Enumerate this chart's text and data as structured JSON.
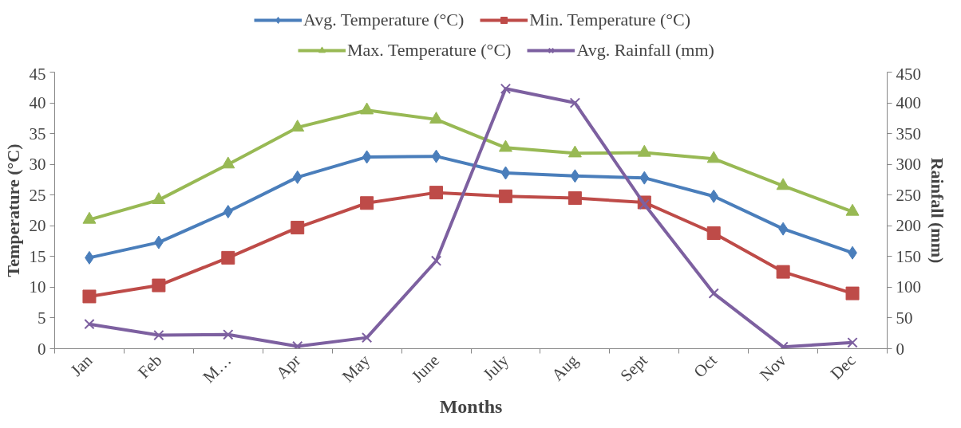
{
  "chart_data": {
    "type": "line",
    "xlabel": "Months",
    "ylabel": "Temperature (°C)",
    "y2label": "Rainfall (mm)",
    "categories": [
      "Jan",
      "Feb",
      "M…",
      "Apr",
      "May",
      "June",
      "July",
      "Aug",
      "Sept",
      "Oct",
      "Nov",
      "Dec"
    ],
    "series": [
      {
        "name": "Avg. Temperature (°C)",
        "color": "#4a7ebb",
        "marker": "diamond",
        "values": [
          14.8,
          17.3,
          22.3,
          27.9,
          31.2,
          31.3,
          28.6,
          28.1,
          27.8,
          24.8,
          19.5,
          15.6
        ]
      },
      {
        "name": "Min. Temperature (°C)",
        "color": "#be4b48",
        "marker": "square",
        "values": [
          8.5,
          10.3,
          14.8,
          19.7,
          23.7,
          25.4,
          24.8,
          24.5,
          23.8,
          18.8,
          12.5,
          9.0
        ]
      },
      {
        "name": "Max. Temperature (°C)",
        "color": "#98b954",
        "marker": "triangle",
        "values": [
          21.0,
          24.2,
          30.0,
          36.0,
          38.8,
          37.3,
          32.7,
          31.8,
          31.9,
          30.9,
          26.5,
          22.3
        ]
      },
      {
        "name": "Avg. Rainfall (mm)",
        "color": "#7d60a0",
        "marker": "cross",
        "axis": "y2",
        "values": [
          40,
          22,
          23,
          4,
          18,
          143,
          423,
          400,
          235,
          90,
          3,
          10
        ]
      }
    ],
    "ylim": [
      0,
      45
    ],
    "yticks": [
      0,
      5,
      10,
      15,
      20,
      25,
      30,
      35,
      40,
      45
    ],
    "y2lim": [
      0,
      450
    ],
    "y2ticks": [
      0,
      50,
      100,
      150,
      200,
      250,
      300,
      350,
      400,
      450
    ],
    "legend": "top",
    "grid": false
  }
}
